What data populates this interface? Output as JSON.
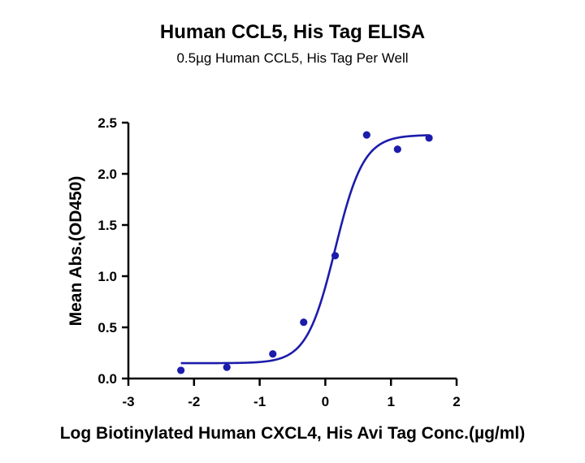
{
  "chart_data": {
    "type": "scatter",
    "title": "Human CCL5, His Tag ELISA",
    "subtitle": "0.5µg Human CCL5, His Tag Per Well",
    "xlabel": "Log Biotinylated Human CXCL4, His Avi Tag Conc.(µg/ml)",
    "ylabel": "Mean Abs.(OD450)",
    "xlim": [
      -3,
      2
    ],
    "ylim": [
      0,
      2.5
    ],
    "xticks": [
      "-3",
      "-2",
      "-1",
      "0",
      "1",
      "2"
    ],
    "yticks": [
      "0.0",
      "0.5",
      "1.0",
      "1.5",
      "2.0",
      "2.5"
    ],
    "grid": false,
    "series": [
      {
        "points": [
          {
            "x": -2.2,
            "y": 0.08
          },
          {
            "x": -1.5,
            "y": 0.11
          },
          {
            "x": -0.8,
            "y": 0.24
          },
          {
            "x": -0.33,
            "y": 0.55
          },
          {
            "x": 0.15,
            "y": 1.2
          },
          {
            "x": 0.63,
            "y": 2.38
          },
          {
            "x": 1.1,
            "y": 2.24
          },
          {
            "x": 1.58,
            "y": 2.35
          }
        ],
        "fit": {
          "model": "4PL",
          "bottom": 0.15,
          "top": 2.38,
          "logEC50": 0.15,
          "hill": 2.0,
          "x_range": [
            -2.2,
            1.58
          ]
        },
        "color": "#1c1cab"
      }
    ]
  }
}
